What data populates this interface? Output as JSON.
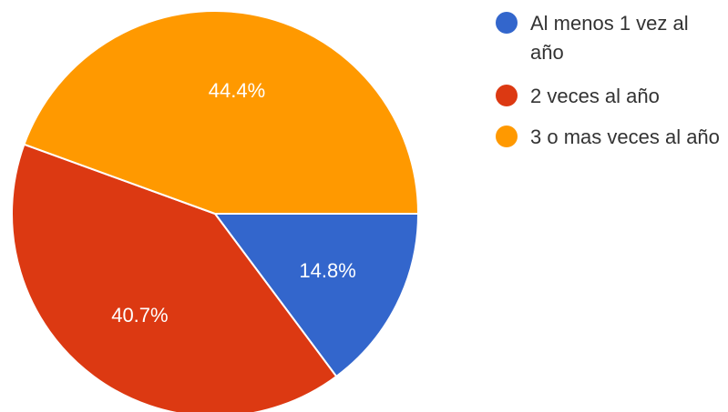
{
  "chart_data": {
    "type": "pie",
    "title": "",
    "slices": [
      {
        "label": "Al menos 1 vez al año",
        "value": 14.8,
        "display": "14.8%",
        "color": "#3366cc"
      },
      {
        "label": "2 veces al año",
        "value": 40.7,
        "display": "40.7%",
        "color": "#dc3912"
      },
      {
        "label": "3 o mas veces al año",
        "value": 44.4,
        "display": "44.4%",
        "color": "#ff9900"
      }
    ],
    "legend_position": "right"
  }
}
